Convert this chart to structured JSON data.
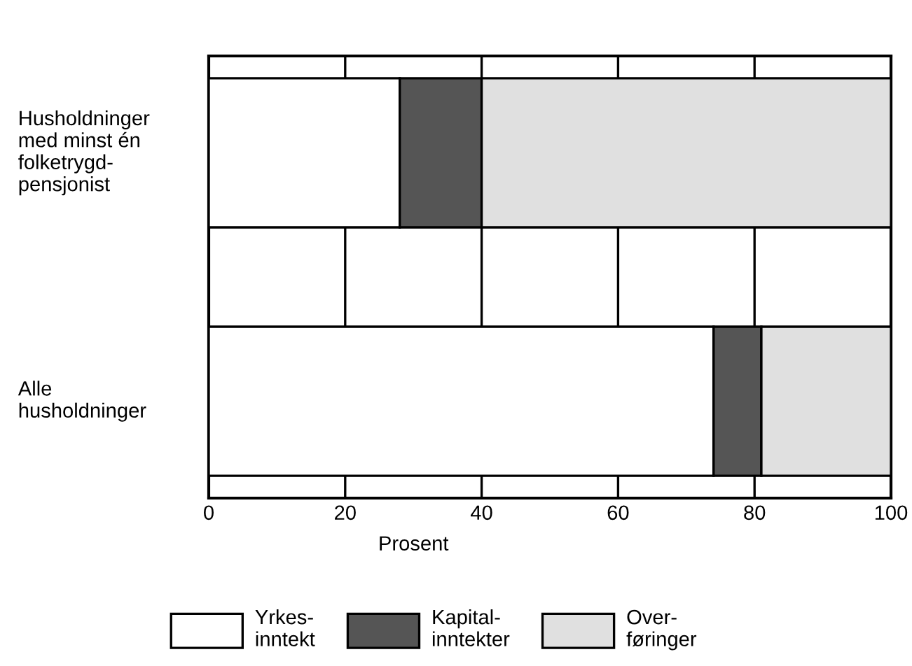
{
  "chart_data": {
    "type": "bar",
    "orientation": "horizontal",
    "stacked": true,
    "categories": [
      "Husholdninger\nmed minst én\nfolketrygd-\npensjonist",
      "Alle\nhusholdninger"
    ],
    "series": [
      {
        "name": "Yrkes-\ninntekt",
        "color": "#ffffff",
        "values": [
          28,
          74
        ]
      },
      {
        "name": "Kapital-\ninntekter",
        "color": "#555555",
        "values": [
          12,
          7
        ]
      },
      {
        "name": "Over-\nføringer",
        "color": "#e0e0e0",
        "values": [
          60,
          19
        ]
      }
    ],
    "xlabel": "Prosent",
    "xlim": [
      0,
      100
    ],
    "xticks": [
      0,
      20,
      40,
      60,
      80,
      100
    ],
    "grid": "x",
    "legend": "bottom"
  }
}
